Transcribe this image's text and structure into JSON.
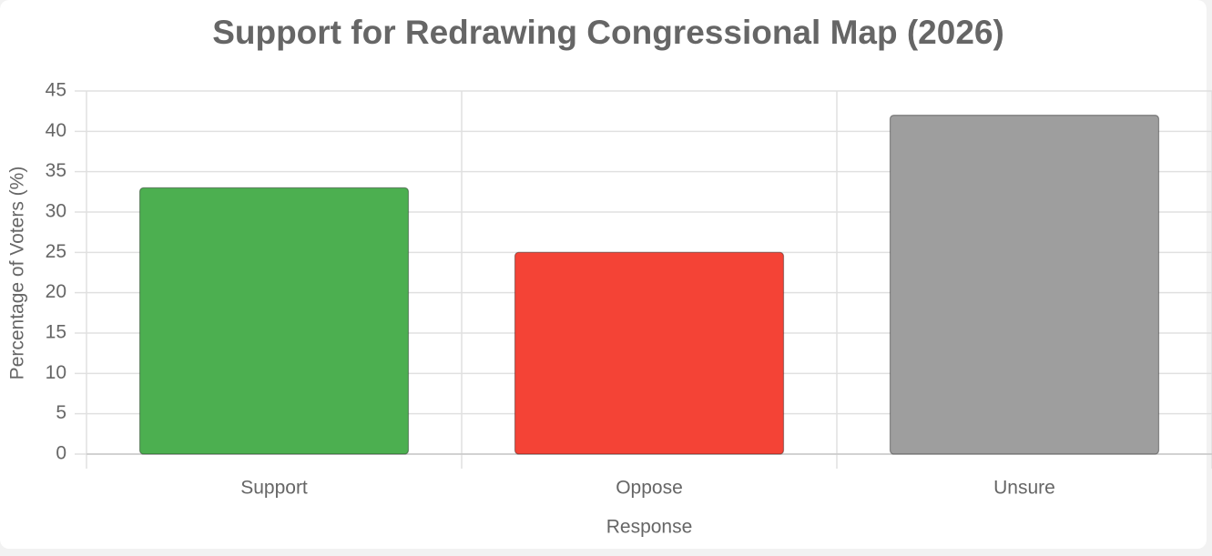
{
  "chart_data": {
    "type": "bar",
    "title": "Support for Redrawing Congressional Map (2026)",
    "x_label": "Response",
    "y_label": "Percentage of Voters (%)",
    "categories": [
      "Support",
      "Oppose",
      "Unsure"
    ],
    "values": [
      33,
      25,
      42
    ],
    "colors": [
      "#4caf50",
      "#f44336",
      "#9e9e9e"
    ],
    "ylim": [
      0,
      45
    ],
    "yticks": [
      0,
      5,
      10,
      15,
      20,
      25,
      30,
      35,
      40,
      45
    ],
    "grid": true
  }
}
